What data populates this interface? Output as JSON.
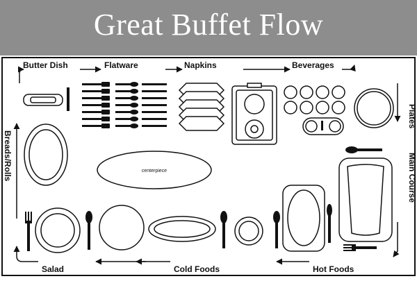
{
  "title": "Great Buffet Flow",
  "colors": {
    "header_bg": "#8d8d8d",
    "title_text": "#ffffff",
    "ink": "#111111"
  },
  "stations": {
    "butter_dish": "Butter Dish",
    "flatware": "Flatware",
    "napkins": "Napkins",
    "beverages": "Beverages",
    "plates": "Plates",
    "main_course": "Main Course",
    "hot_foods": "Hot Foods",
    "cold_foods": "Cold Foods",
    "salad": "Salad",
    "breads_rolls": "Breads/Rolls"
  },
  "centerpiece_label": "centerpiece"
}
